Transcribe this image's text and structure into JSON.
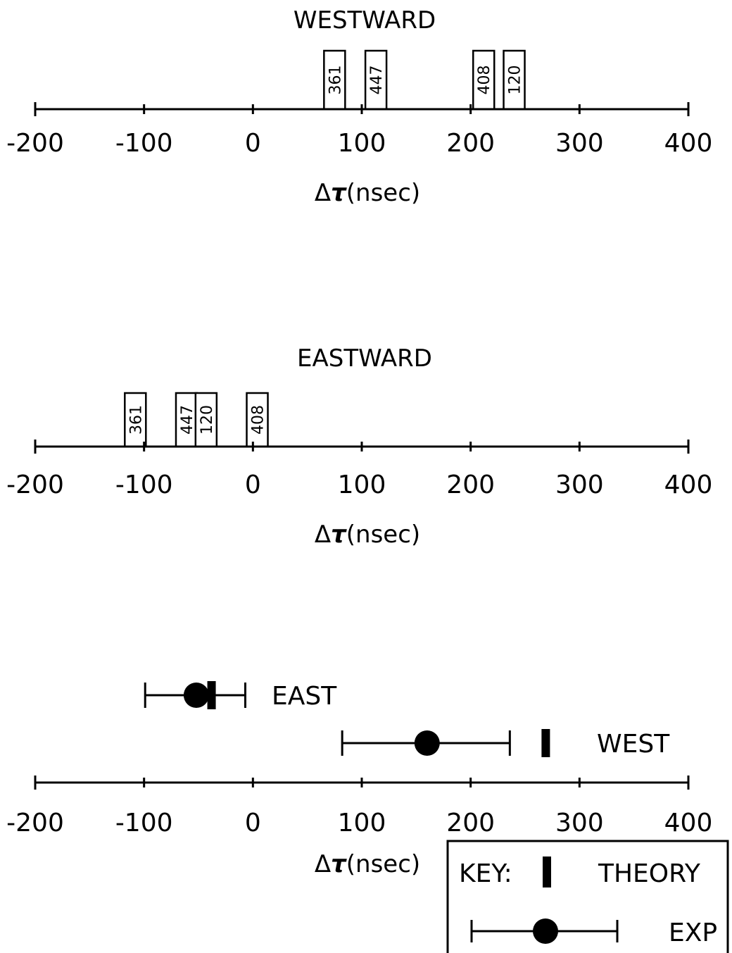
{
  "axis_label_prefix": "Δ",
  "axis_label_tau": "τ",
  "axis_label_suffix": "(nsec)",
  "chart_data": [
    {
      "type": "bar",
      "title": "WESTWARD",
      "xlabel": "Δτ(nsec)",
      "xlim": [
        -200,
        400
      ],
      "xticks": [
        -200,
        -100,
        0,
        100,
        200,
        300,
        400
      ],
      "tick_labels": [
        "-200",
        "-100",
        "0",
        "100",
        "200",
        "300",
        "400"
      ],
      "clocks": [
        {
          "label": "361",
          "value": 75
        },
        {
          "label": "447",
          "value": 113
        },
        {
          "label": "408",
          "value": 212
        },
        {
          "label": "120",
          "value": 240
        }
      ]
    },
    {
      "type": "bar",
      "title": "EASTWARD",
      "xlabel": "Δτ(nsec)",
      "xlim": [
        -200,
        400
      ],
      "xticks": [
        -200,
        -100,
        0,
        100,
        200,
        300,
        400
      ],
      "tick_labels": [
        "-200",
        "-100",
        "0",
        "100",
        "200",
        "300",
        "400"
      ],
      "clocks": [
        {
          "label": "361",
          "value": -108
        },
        {
          "label": "447",
          "value": -61
        },
        {
          "label": "120",
          "value": -43
        },
        {
          "label": "408",
          "value": 4
        }
      ]
    },
    {
      "type": "scatter",
      "xlabel": "Δτ(nsec)",
      "xlim": [
        -200,
        400
      ],
      "xticks": [
        -200,
        -100,
        0,
        100,
        200,
        300,
        400
      ],
      "tick_labels": [
        "-200",
        "-100",
        "0",
        "100",
        "200",
        "300",
        "400"
      ],
      "series": [
        {
          "name": "EAST",
          "exp": -52,
          "err_low": -99,
          "err_high": -7,
          "theory": -38
        },
        {
          "name": "WEST",
          "exp": 160,
          "err_low": 82,
          "err_high": 236,
          "theory": 269
        }
      ],
      "key": {
        "title": "KEY:",
        "theory_label": "THEORY",
        "exp_label": "EXP"
      }
    }
  ]
}
